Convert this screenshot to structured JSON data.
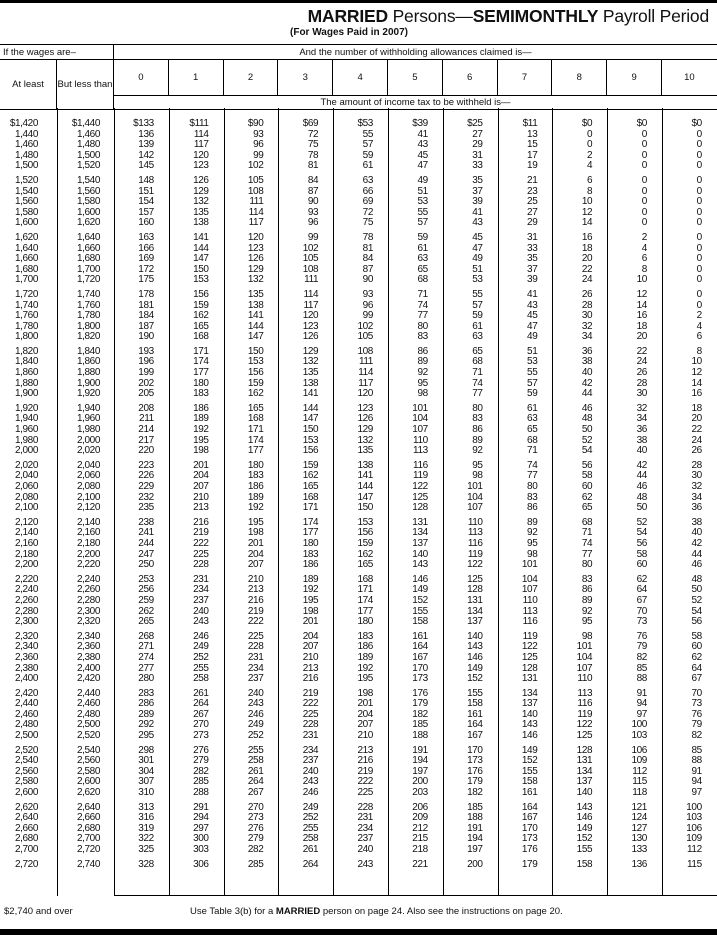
{
  "title": {
    "bold1": "MARRIED",
    "mid": " Persons—",
    "bold2": "SEMIMONTHLY",
    "end": " Payroll Period"
  },
  "subtitle": "(For Wages Paid in 2007)",
  "header": {
    "wages": "If the wages are–",
    "allowances": "And the number of withholding allowances claimed is—",
    "at_least": "At least",
    "but_less_than": "But less than",
    "allowance_counts": [
      "0",
      "1",
      "2",
      "3",
      "4",
      "5",
      "6",
      "7",
      "8",
      "9",
      "10"
    ],
    "amount": "The amount of income tax to be withheld is—"
  },
  "table": {
    "rows": [
      [
        "$1,420",
        "$1,440",
        "$133",
        "$111",
        "$90",
        "$69",
        "$53",
        "$39",
        "$25",
        "$11",
        "$0",
        "$0",
        "$0"
      ],
      [
        "1,440",
        "1,460",
        "136",
        "114",
        "93",
        "72",
        "55",
        "41",
        "27",
        "13",
        "0",
        "0",
        "0"
      ],
      [
        "1,460",
        "1,480",
        "139",
        "117",
        "96",
        "75",
        "57",
        "43",
        "29",
        "15",
        "0",
        "0",
        "0"
      ],
      [
        "1,480",
        "1,500",
        "142",
        "120",
        "99",
        "78",
        "59",
        "45",
        "31",
        "17",
        "2",
        "0",
        "0"
      ],
      [
        "1,500",
        "1,520",
        "145",
        "123",
        "102",
        "81",
        "61",
        "47",
        "33",
        "19",
        "4",
        "0",
        "0"
      ],
      [
        "1,520",
        "1,540",
        "148",
        "126",
        "105",
        "84",
        "63",
        "49",
        "35",
        "21",
        "6",
        "0",
        "0"
      ],
      [
        "1,540",
        "1,560",
        "151",
        "129",
        "108",
        "87",
        "66",
        "51",
        "37",
        "23",
        "8",
        "0",
        "0"
      ],
      [
        "1,560",
        "1,580",
        "154",
        "132",
        "111",
        "90",
        "69",
        "53",
        "39",
        "25",
        "10",
        "0",
        "0"
      ],
      [
        "1,580",
        "1,600",
        "157",
        "135",
        "114",
        "93",
        "72",
        "55",
        "41",
        "27",
        "12",
        "0",
        "0"
      ],
      [
        "1,600",
        "1,620",
        "160",
        "138",
        "117",
        "96",
        "75",
        "57",
        "43",
        "29",
        "14",
        "0",
        "0"
      ],
      [
        "1,620",
        "1,640",
        "163",
        "141",
        "120",
        "99",
        "78",
        "59",
        "45",
        "31",
        "16",
        "2",
        "0"
      ],
      [
        "1,640",
        "1,660",
        "166",
        "144",
        "123",
        "102",
        "81",
        "61",
        "47",
        "33",
        "18",
        "4",
        "0"
      ],
      [
        "1,660",
        "1,680",
        "169",
        "147",
        "126",
        "105",
        "84",
        "63",
        "49",
        "35",
        "20",
        "6",
        "0"
      ],
      [
        "1,680",
        "1,700",
        "172",
        "150",
        "129",
        "108",
        "87",
        "65",
        "51",
        "37",
        "22",
        "8",
        "0"
      ],
      [
        "1,700",
        "1,720",
        "175",
        "153",
        "132",
        "111",
        "90",
        "68",
        "53",
        "39",
        "24",
        "10",
        "0"
      ],
      [
        "1,720",
        "1,740",
        "178",
        "156",
        "135",
        "114",
        "93",
        "71",
        "55",
        "41",
        "26",
        "12",
        "0"
      ],
      [
        "1,740",
        "1,760",
        "181",
        "159",
        "138",
        "117",
        "96",
        "74",
        "57",
        "43",
        "28",
        "14",
        "0"
      ],
      [
        "1,760",
        "1,780",
        "184",
        "162",
        "141",
        "120",
        "99",
        "77",
        "59",
        "45",
        "30",
        "16",
        "2"
      ],
      [
        "1,780",
        "1,800",
        "187",
        "165",
        "144",
        "123",
        "102",
        "80",
        "61",
        "47",
        "32",
        "18",
        "4"
      ],
      [
        "1,800",
        "1,820",
        "190",
        "168",
        "147",
        "126",
        "105",
        "83",
        "63",
        "49",
        "34",
        "20",
        "6"
      ],
      [
        "1,820",
        "1,840",
        "193",
        "171",
        "150",
        "129",
        "108",
        "86",
        "65",
        "51",
        "36",
        "22",
        "8"
      ],
      [
        "1,840",
        "1,860",
        "196",
        "174",
        "153",
        "132",
        "111",
        "89",
        "68",
        "53",
        "38",
        "24",
        "10"
      ],
      [
        "1,860",
        "1,880",
        "199",
        "177",
        "156",
        "135",
        "114",
        "92",
        "71",
        "55",
        "40",
        "26",
        "12"
      ],
      [
        "1,880",
        "1,900",
        "202",
        "180",
        "159",
        "138",
        "117",
        "95",
        "74",
        "57",
        "42",
        "28",
        "14"
      ],
      [
        "1,900",
        "1,920",
        "205",
        "183",
        "162",
        "141",
        "120",
        "98",
        "77",
        "59",
        "44",
        "30",
        "16"
      ],
      [
        "1,920",
        "1,940",
        "208",
        "186",
        "165",
        "144",
        "123",
        "101",
        "80",
        "61",
        "46",
        "32",
        "18"
      ],
      [
        "1,940",
        "1,960",
        "211",
        "189",
        "168",
        "147",
        "126",
        "104",
        "83",
        "63",
        "48",
        "34",
        "20"
      ],
      [
        "1,960",
        "1,980",
        "214",
        "192",
        "171",
        "150",
        "129",
        "107",
        "86",
        "65",
        "50",
        "36",
        "22"
      ],
      [
        "1,980",
        "2,000",
        "217",
        "195",
        "174",
        "153",
        "132",
        "110",
        "89",
        "68",
        "52",
        "38",
        "24"
      ],
      [
        "2,000",
        "2,020",
        "220",
        "198",
        "177",
        "156",
        "135",
        "113",
        "92",
        "71",
        "54",
        "40",
        "26"
      ],
      [
        "2,020",
        "2,040",
        "223",
        "201",
        "180",
        "159",
        "138",
        "116",
        "95",
        "74",
        "56",
        "42",
        "28"
      ],
      [
        "2,040",
        "2,060",
        "226",
        "204",
        "183",
        "162",
        "141",
        "119",
        "98",
        "77",
        "58",
        "44",
        "30"
      ],
      [
        "2,060",
        "2,080",
        "229",
        "207",
        "186",
        "165",
        "144",
        "122",
        "101",
        "80",
        "60",
        "46",
        "32"
      ],
      [
        "2,080",
        "2,100",
        "232",
        "210",
        "189",
        "168",
        "147",
        "125",
        "104",
        "83",
        "62",
        "48",
        "34"
      ],
      [
        "2,100",
        "2,120",
        "235",
        "213",
        "192",
        "171",
        "150",
        "128",
        "107",
        "86",
        "65",
        "50",
        "36"
      ],
      [
        "2,120",
        "2,140",
        "238",
        "216",
        "195",
        "174",
        "153",
        "131",
        "110",
        "89",
        "68",
        "52",
        "38"
      ],
      [
        "2,140",
        "2,160",
        "241",
        "219",
        "198",
        "177",
        "156",
        "134",
        "113",
        "92",
        "71",
        "54",
        "40"
      ],
      [
        "2,160",
        "2,180",
        "244",
        "222",
        "201",
        "180",
        "159",
        "137",
        "116",
        "95",
        "74",
        "56",
        "42"
      ],
      [
        "2,180",
        "2,200",
        "247",
        "225",
        "204",
        "183",
        "162",
        "140",
        "119",
        "98",
        "77",
        "58",
        "44"
      ],
      [
        "2,200",
        "2,220",
        "250",
        "228",
        "207",
        "186",
        "165",
        "143",
        "122",
        "101",
        "80",
        "60",
        "46"
      ],
      [
        "2,220",
        "2,240",
        "253",
        "231",
        "210",
        "189",
        "168",
        "146",
        "125",
        "104",
        "83",
        "62",
        "48"
      ],
      [
        "2,240",
        "2,260",
        "256",
        "234",
        "213",
        "192",
        "171",
        "149",
        "128",
        "107",
        "86",
        "64",
        "50"
      ],
      [
        "2,260",
        "2,280",
        "259",
        "237",
        "216",
        "195",
        "174",
        "152",
        "131",
        "110",
        "89",
        "67",
        "52"
      ],
      [
        "2,280",
        "2,300",
        "262",
        "240",
        "219",
        "198",
        "177",
        "155",
        "134",
        "113",
        "92",
        "70",
        "54"
      ],
      [
        "2,300",
        "2,320",
        "265",
        "243",
        "222",
        "201",
        "180",
        "158",
        "137",
        "116",
        "95",
        "73",
        "56"
      ],
      [
        "2,320",
        "2,340",
        "268",
        "246",
        "225",
        "204",
        "183",
        "161",
        "140",
        "119",
        "98",
        "76",
        "58"
      ],
      [
        "2,340",
        "2,360",
        "271",
        "249",
        "228",
        "207",
        "186",
        "164",
        "143",
        "122",
        "101",
        "79",
        "60"
      ],
      [
        "2,360",
        "2,380",
        "274",
        "252",
        "231",
        "210",
        "189",
        "167",
        "146",
        "125",
        "104",
        "82",
        "62"
      ],
      [
        "2,380",
        "2,400",
        "277",
        "255",
        "234",
        "213",
        "192",
        "170",
        "149",
        "128",
        "107",
        "85",
        "64"
      ],
      [
        "2,400",
        "2,420",
        "280",
        "258",
        "237",
        "216",
        "195",
        "173",
        "152",
        "131",
        "110",
        "88",
        "67"
      ],
      [
        "2,420",
        "2,440",
        "283",
        "261",
        "240",
        "219",
        "198",
        "176",
        "155",
        "134",
        "113",
        "91",
        "70"
      ],
      [
        "2,440",
        "2,460",
        "286",
        "264",
        "243",
        "222",
        "201",
        "179",
        "158",
        "137",
        "116",
        "94",
        "73"
      ],
      [
        "2,460",
        "2,480",
        "289",
        "267",
        "246",
        "225",
        "204",
        "182",
        "161",
        "140",
        "119",
        "97",
        "76"
      ],
      [
        "2,480",
        "2,500",
        "292",
        "270",
        "249",
        "228",
        "207",
        "185",
        "164",
        "143",
        "122",
        "100",
        "79"
      ],
      [
        "2,500",
        "2,520",
        "295",
        "273",
        "252",
        "231",
        "210",
        "188",
        "167",
        "146",
        "125",
        "103",
        "82"
      ],
      [
        "2,520",
        "2,540",
        "298",
        "276",
        "255",
        "234",
        "213",
        "191",
        "170",
        "149",
        "128",
        "106",
        "85"
      ],
      [
        "2,540",
        "2,560",
        "301",
        "279",
        "258",
        "237",
        "216",
        "194",
        "173",
        "152",
        "131",
        "109",
        "88"
      ],
      [
        "2,560",
        "2,580",
        "304",
        "282",
        "261",
        "240",
        "219",
        "197",
        "176",
        "155",
        "134",
        "112",
        "91"
      ],
      [
        "2,580",
        "2,600",
        "307",
        "285",
        "264",
        "243",
        "222",
        "200",
        "179",
        "158",
        "137",
        "115",
        "94"
      ],
      [
        "2,600",
        "2,620",
        "310",
        "288",
        "267",
        "246",
        "225",
        "203",
        "182",
        "161",
        "140",
        "118",
        "97"
      ],
      [
        "2,620",
        "2,640",
        "313",
        "291",
        "270",
        "249",
        "228",
        "206",
        "185",
        "164",
        "143",
        "121",
        "100"
      ],
      [
        "2,640",
        "2,660",
        "316",
        "294",
        "273",
        "252",
        "231",
        "209",
        "188",
        "167",
        "146",
        "124",
        "103"
      ],
      [
        "2,660",
        "2,680",
        "319",
        "297",
        "276",
        "255",
        "234",
        "212",
        "191",
        "170",
        "149",
        "127",
        "106"
      ],
      [
        "2,680",
        "2,700",
        "322",
        "300",
        "279",
        "258",
        "237",
        "215",
        "194",
        "173",
        "152",
        "130",
        "109"
      ],
      [
        "2,700",
        "2,720",
        "325",
        "303",
        "282",
        "261",
        "240",
        "218",
        "197",
        "176",
        "155",
        "133",
        "112"
      ],
      [
        "2,720",
        "2,740",
        "328",
        "306",
        "285",
        "264",
        "243",
        "221",
        "200",
        "179",
        "158",
        "136",
        "115"
      ]
    ]
  },
  "footer": {
    "over_label": "$2,740 and over",
    "note_pre": "Use Table 3(b) for a ",
    "note_bold": "MARRIED",
    "note_post": " person on page 24. Also see the instructions on page 20."
  }
}
